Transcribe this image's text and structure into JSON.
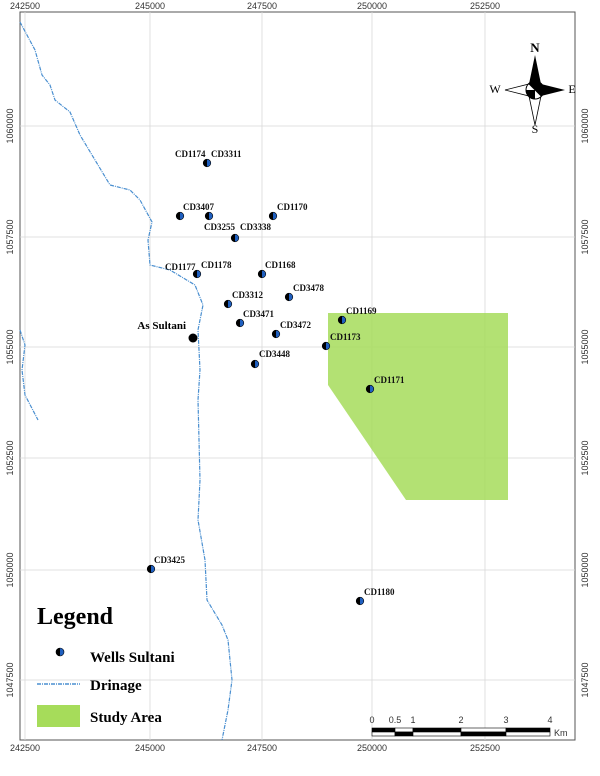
{
  "map": {
    "x_ticks": [
      242500,
      245000,
      247500,
      250000,
      252500
    ],
    "y_ticks": [
      1047500,
      1050000,
      1052500,
      1055000,
      1057500,
      1060000
    ],
    "north": {
      "n": "N",
      "e": "E",
      "s": "S",
      "w": "W"
    },
    "wells": [
      "CD1174",
      "CD3311",
      "CD3407",
      "CD3255",
      "CD3338",
      "CD1170",
      "CD1177",
      "CD1178",
      "CD1168",
      "CD3478",
      "CD3312",
      "CD3471",
      "CD1169",
      "CD3472",
      "CD1173",
      "CD3448",
      "CD1171",
      "CD3425",
      "CD1180"
    ],
    "town": "As Sultani",
    "legend": {
      "title": "Legend",
      "items": [
        "Wells Sultani",
        "Drinage",
        "Study Area"
      ]
    },
    "scale": {
      "ticks": [
        0,
        0.5,
        1,
        2,
        3,
        4
      ],
      "unit": "Km"
    }
  }
}
